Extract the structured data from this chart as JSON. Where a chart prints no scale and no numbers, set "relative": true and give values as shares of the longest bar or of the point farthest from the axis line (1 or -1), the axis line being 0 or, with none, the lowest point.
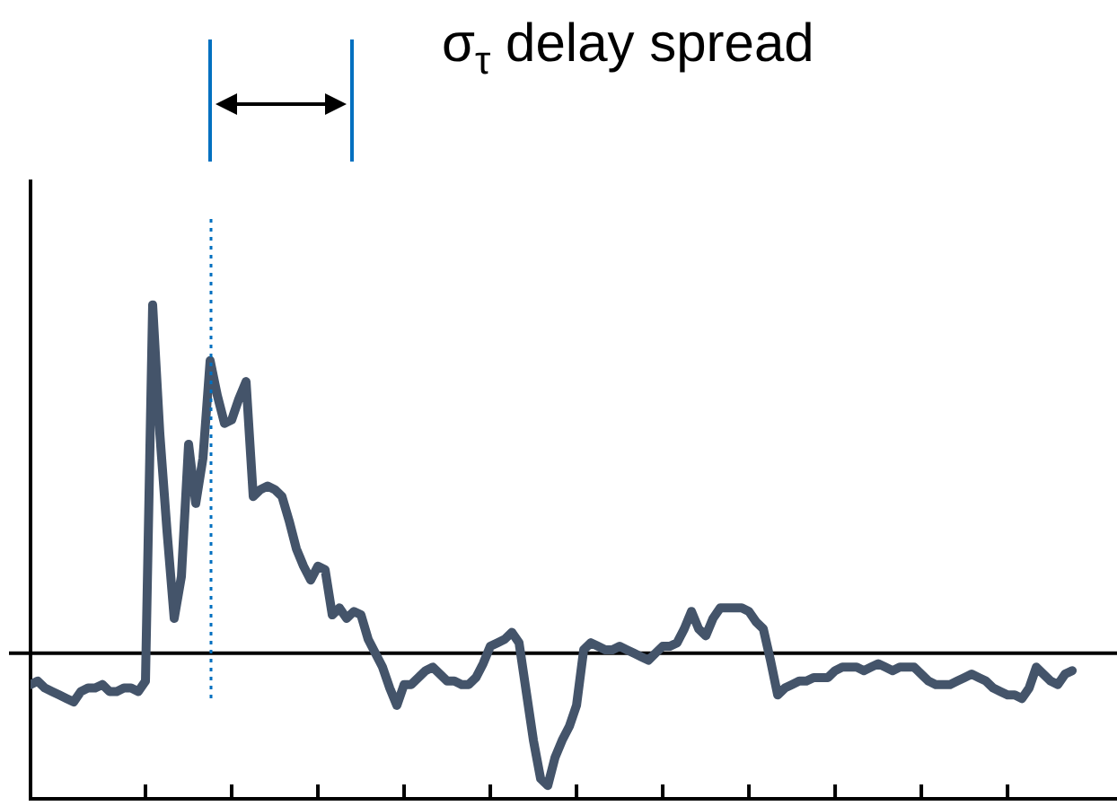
{
  "chart_data": {
    "type": "line",
    "relative": true,
    "color": "#44546a",
    "annotations": [
      "σ$_{τ}$ delay spread"
    ],
    "categories": [
      null,
      null,
      null,
      null,
      null,
      null,
      null,
      null,
      null,
      null,
      null,
      null,
      null,
      null,
      null,
      null,
      null,
      null,
      null,
      null,
      null,
      null,
      null,
      null,
      null,
      null,
      null,
      null,
      null,
      null,
      null,
      null,
      null,
      null,
      null,
      null,
      null,
      null,
      null,
      null,
      null,
      null,
      null,
      null,
      null,
      null,
      null,
      null,
      null,
      null,
      null,
      null,
      null,
      null,
      null,
      null,
      null,
      null,
      null,
      null,
      null,
      null,
      null,
      null,
      null,
      null,
      null,
      null,
      null,
      null,
      null,
      null,
      null,
      null,
      null,
      null,
      null,
      null,
      null,
      null,
      null,
      null,
      null,
      null,
      null,
      null,
      null,
      null,
      null,
      null,
      null,
      null,
      null,
      null,
      null,
      null,
      null,
      null,
      null,
      null,
      null,
      null,
      null,
      null,
      null,
      null,
      null,
      null,
      null,
      null,
      null,
      null,
      null,
      null,
      null,
      null,
      null,
      null,
      null,
      null,
      null,
      null,
      null,
      null,
      null,
      null,
      null,
      null,
      null,
      null,
      null,
      null,
      null,
      null,
      null,
      null,
      null,
      null,
      null,
      null,
      null,
      null,
      null,
      null,
      null,
      null
    ],
    "values": [
      -0.09,
      -0.08,
      -0.1,
      -0.11,
      -0.12,
      -0.13,
      -0.14,
      -0.11,
      -0.1,
      -0.1,
      -0.09,
      -0.11,
      -0.11,
      -0.1,
      -0.1,
      -0.11,
      -0.08,
      1,
      0.63,
      0.35,
      0.1,
      0.22,
      0.6,
      0.43,
      0.56,
      0.84,
      0.74,
      0.66,
      0.67,
      0.73,
      0.78,
      0.45,
      0.47,
      0.48,
      0.47,
      0.45,
      0.38,
      0.3,
      0.25,
      0.21,
      0.25,
      0.24,
      0.11,
      0.13,
      0.1,
      0.12,
      0.11,
      0.04,
      0,
      -0.04,
      -0.1,
      -0.15,
      -0.09,
      -0.09,
      -0.07,
      -0.05,
      -0.04,
      -0.06,
      -0.08,
      -0.08,
      -0.09,
      -0.09,
      -0.07,
      -0.03,
      0.02,
      0.03,
      0.04,
      0.06,
      0.03,
      -0.11,
      -0.25,
      -0.36,
      -0.38,
      -0.3,
      -0.25,
      -0.21,
      -0.15,
      0.01,
      0.03,
      0.02,
      0.01,
      0.01,
      0.02,
      0.01,
      0,
      -0.01,
      -0.02,
      0,
      0.02,
      0.02,
      0.03,
      0.07,
      0.12,
      0.07,
      0.05,
      0.1,
      0.13,
      0.13,
      0.13,
      0.13,
      0.12,
      0.09,
      0.07,
      -0.02,
      -0.12,
      -0.1,
      -0.09,
      -0.08,
      -0.08,
      -0.07,
      -0.07,
      -0.07,
      -0.05,
      -0.04,
      -0.04,
      -0.04,
      -0.05,
      -0.04,
      -0.03,
      -0.04,
      -0.05,
      -0.04,
      -0.04,
      -0.04,
      -0.06,
      -0.08,
      -0.09,
      -0.09,
      -0.09,
      -0.08,
      -0.07,
      -0.06,
      -0.07,
      -0.08,
      -0.1,
      -0.11,
      -0.12,
      -0.12,
      -0.13,
      -0.1,
      -0.04,
      -0.06,
      -0.08,
      -0.09,
      -0.06,
      -0.05
    ]
  }
}
